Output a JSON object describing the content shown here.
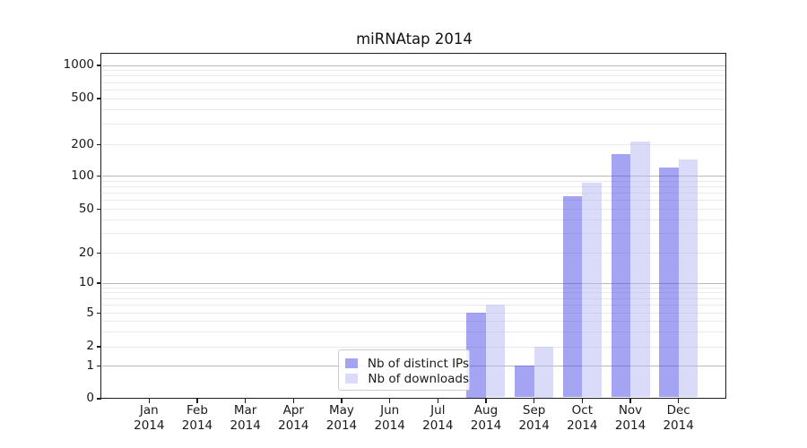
{
  "figure": {
    "title": "miRNAtap 2014"
  },
  "chart_data": {
    "type": "bar",
    "title": "miRNAtap 2014",
    "year_label": "2014",
    "categories": [
      "Jan",
      "Feb",
      "Mar",
      "Apr",
      "May",
      "Jun",
      "Jul",
      "Aug",
      "Sep",
      "Oct",
      "Nov",
      "Dec"
    ],
    "series": [
      {
        "name": "Nb of distinct IPs",
        "legend_color": "#a4a4f2",
        "bar_fill": "rgba(73,73,229,0.5)",
        "values": [
          0,
          0,
          0,
          0,
          0,
          0,
          0,
          5,
          1,
          65,
          162,
          121
        ]
      },
      {
        "name": "Nb of downloads",
        "legend_color": "#dadaf9",
        "bar_fill": "rgba(181,181,243,0.5)",
        "values": [
          0,
          0,
          0,
          0,
          0,
          0,
          0,
          6,
          2,
          87,
          210,
          143
        ]
      }
    ],
    "y_axis": {
      "scale": "symlog",
      "ticks": [
        0,
        1,
        2,
        5,
        10,
        20,
        50,
        100,
        200,
        500,
        1000
      ],
      "range": [
        0,
        1300
      ]
    },
    "x_axis": {
      "tick_label_line2": "2014"
    },
    "grid": {
      "visible": true,
      "major_color": "#b9b9b9",
      "minor_color": "#e9e9e9"
    },
    "legend": {
      "position": "lower-center",
      "entries": [
        "Nb of distinct IPs",
        "Nb of downloads"
      ]
    },
    "colors": {
      "spine": "#1c1c1c",
      "text": "#1a1a1a",
      "background": "#ffffff"
    }
  }
}
